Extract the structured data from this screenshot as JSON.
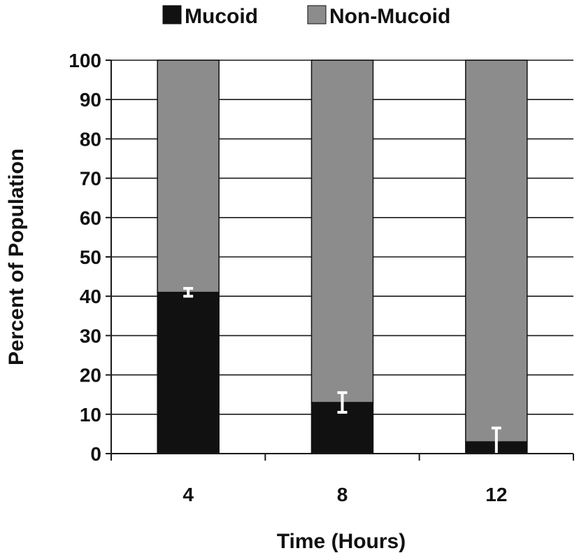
{
  "chart_data": {
    "type": "bar",
    "stacked": true,
    "categories": [
      "4",
      "8",
      "12"
    ],
    "series": [
      {
        "name": "Mucoid",
        "color": "#111111",
        "values": [
          41,
          13,
          3
        ],
        "error": [
          1,
          2.5,
          3.5
        ]
      },
      {
        "name": "Non-Mucoid",
        "color": "#8c8c8c",
        "values": [
          59,
          87,
          97
        ]
      }
    ],
    "xlabel": "Time (Hours)",
    "ylabel": "Percent of Population",
    "ylim": [
      0,
      100
    ],
    "yticks": [
      0,
      10,
      20,
      30,
      40,
      50,
      60,
      70,
      80,
      90,
      100
    ],
    "grid": true,
    "legend_position": "top-center"
  }
}
